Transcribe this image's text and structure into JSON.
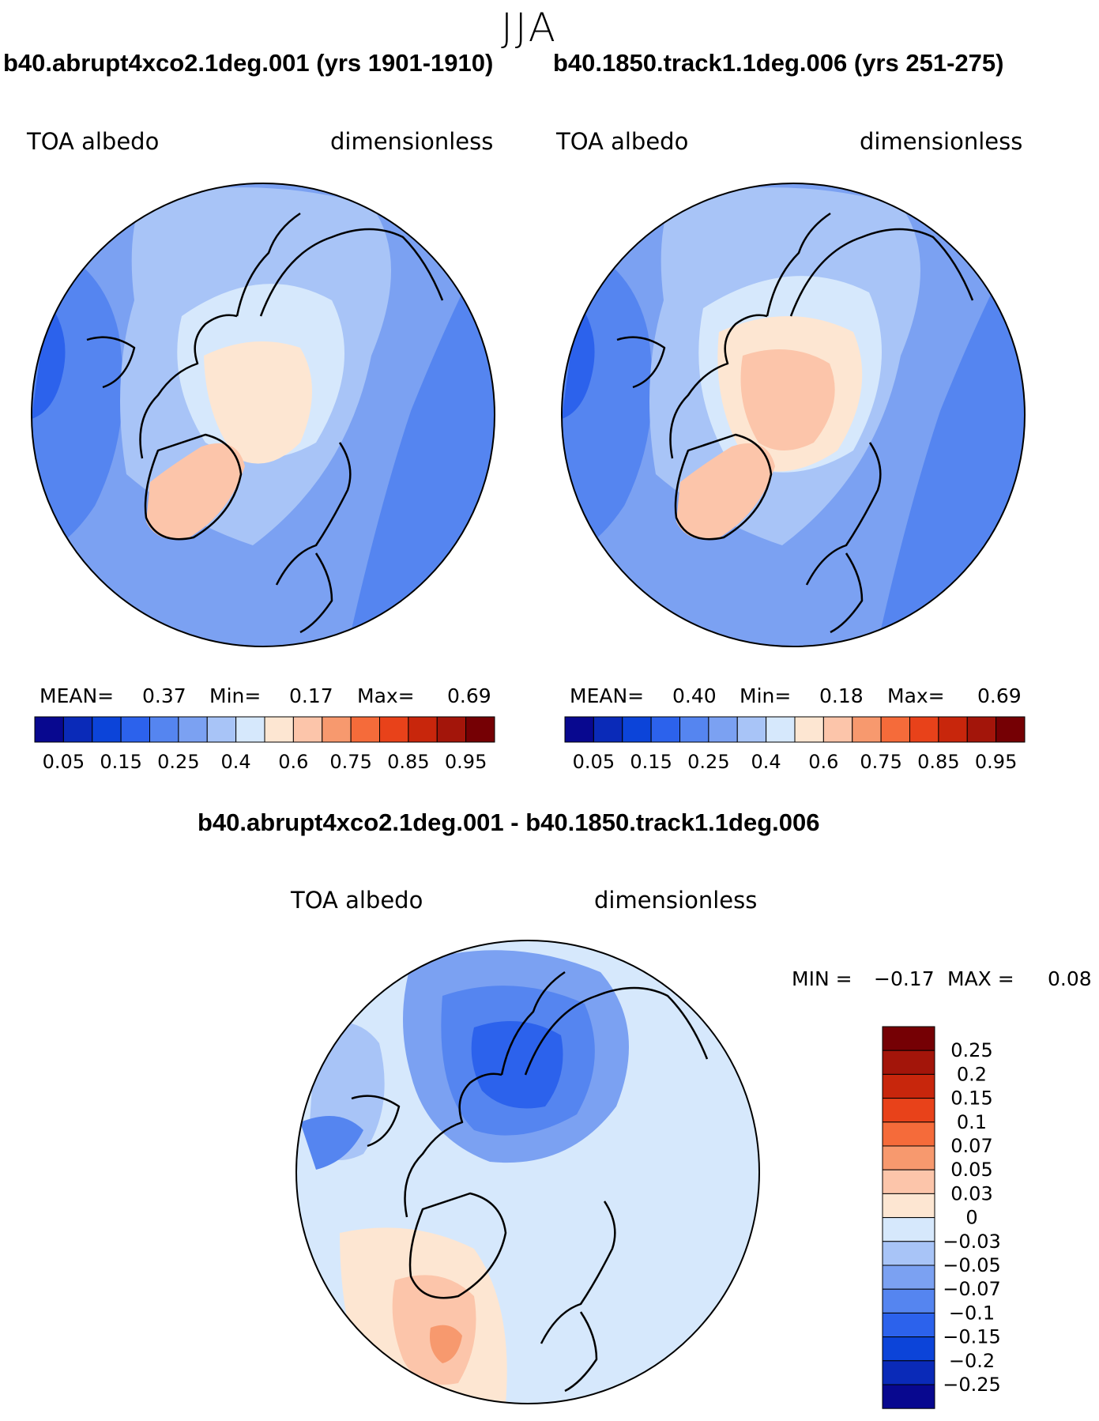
{
  "figure": {
    "season": "JJA",
    "panels": [
      {
        "title": "b40.abrupt4xco2.1deg.001 (yrs 1901-1910)",
        "variable": "TOA albedo",
        "units": "dimensionless",
        "stats": {
          "mean_label": "MEAN=",
          "mean": "0.37",
          "min_label": "Min=",
          "min": "0.17",
          "max_label": "Max=",
          "max": "0.69"
        }
      },
      {
        "title": "b40.1850.track1.1deg.006 (yrs 251-275)",
        "variable": "TOA albedo",
        "units": "dimensionless",
        "stats": {
          "mean_label": "MEAN=",
          "mean": "0.40",
          "min_label": "Min=",
          "min": "0.18",
          "max_label": "Max=",
          "max": "0.69"
        }
      },
      {
        "title": "b40.abrupt4xco2.1deg.001 - b40.1850.track1.1deg.006",
        "variable": "TOA albedo",
        "units": "dimensionless",
        "stats": {
          "min_label": "MIN =",
          "min": "−0.17",
          "max_label": "MAX =",
          "max": "0.08"
        }
      }
    ]
  },
  "chart_data": [
    {
      "type": "heatmap",
      "projection": "north-polar-stereographic",
      "title": "b40.abrupt4xco2.1deg.001 (yrs 1901-1910)",
      "variable": "TOA albedo",
      "units": "dimensionless",
      "mean": 0.37,
      "min": 0.17,
      "max": 0.69,
      "levels": [
        0.05,
        0.1,
        0.15,
        0.2,
        0.25,
        0.3,
        0.4,
        0.5,
        0.6,
        0.7,
        0.75,
        0.8,
        0.85,
        0.9,
        0.95
      ],
      "level_labels": [
        "0.05",
        "0.15",
        "0.25",
        "0.4",
        "0.6",
        "0.75",
        "0.85",
        "0.95"
      ],
      "colors": [
        "#08088f",
        "#0a2ab8",
        "#0c44d9",
        "#2c62ec",
        "#5585f0",
        "#7ba1f2",
        "#a8c4f7",
        "#d6e8fc",
        "#fde6d2",
        "#fcc5aa",
        "#f7996e",
        "#f56b3a",
        "#e8421a",
        "#c8260c",
        "#a3150a",
        "#750004"
      ]
    },
    {
      "type": "heatmap",
      "projection": "north-polar-stereographic",
      "title": "b40.1850.track1.1deg.006 (yrs 251-275)",
      "variable": "TOA albedo",
      "units": "dimensionless",
      "mean": 0.4,
      "min": 0.18,
      "max": 0.69,
      "levels": [
        0.05,
        0.1,
        0.15,
        0.2,
        0.25,
        0.3,
        0.4,
        0.5,
        0.6,
        0.7,
        0.75,
        0.8,
        0.85,
        0.9,
        0.95
      ],
      "level_labels": [
        "0.05",
        "0.15",
        "0.25",
        "0.4",
        "0.6",
        "0.75",
        "0.85",
        "0.95"
      ],
      "colors": [
        "#08088f",
        "#0a2ab8",
        "#0c44d9",
        "#2c62ec",
        "#5585f0",
        "#7ba1f2",
        "#a8c4f7",
        "#d6e8fc",
        "#fde6d2",
        "#fcc5aa",
        "#f7996e",
        "#f56b3a",
        "#e8421a",
        "#c8260c",
        "#a3150a",
        "#750004"
      ]
    },
    {
      "type": "heatmap",
      "projection": "north-polar-stereographic",
      "title": "b40.abrupt4xco2.1deg.001 - b40.1850.track1.1deg.006",
      "variable": "TOA albedo",
      "units": "dimensionless",
      "min": -0.17,
      "max": 0.08,
      "levels": [
        -0.25,
        -0.2,
        -0.15,
        -0.1,
        -0.07,
        -0.05,
        -0.03,
        0,
        0.03,
        0.05,
        0.07,
        0.1,
        0.15,
        0.2,
        0.25
      ],
      "level_labels": [
        "0.25",
        "0.2",
        "0.15",
        "0.1",
        "0.07",
        "0.05",
        "0.03",
        "0",
        "−0.03",
        "−0.05",
        "−0.07",
        "−0.1",
        "−0.15",
        "−0.2",
        "−0.25"
      ],
      "colors": [
        "#750004",
        "#a3150a",
        "#c8260c",
        "#e8421a",
        "#f56b3a",
        "#f7996e",
        "#fcc5aa",
        "#fde6d2",
        "#d6e8fc",
        "#a8c4f7",
        "#7ba1f2",
        "#5585f0",
        "#2c62ec",
        "#0c44d9",
        "#0a2ab8",
        "#08088f"
      ]
    }
  ]
}
